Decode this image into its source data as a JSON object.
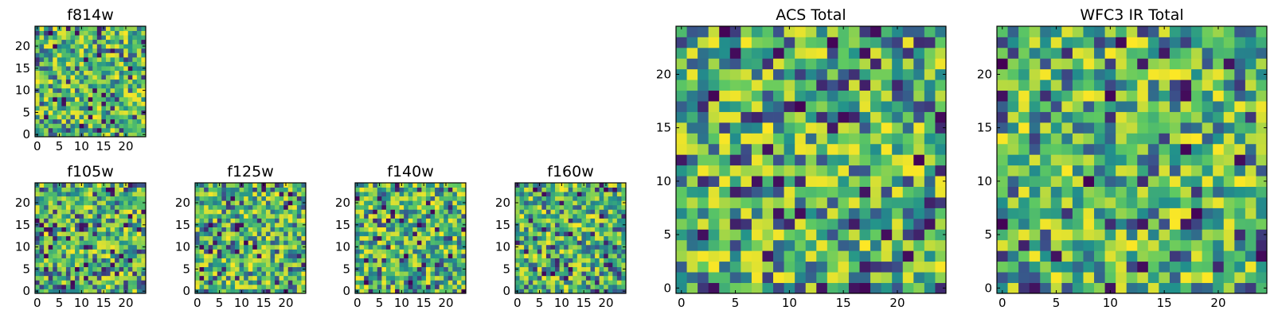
{
  "figure": {
    "colormap": "viridis",
    "colormap_stops": [
      "#440154",
      "#3b528b",
      "#21918c",
      "#5ec962",
      "#fde725"
    ],
    "frame_color": "#000000"
  },
  "chart_data": [
    {
      "type": "heatmap",
      "title": "f814w",
      "grid_size": 25,
      "seed": 11,
      "xlim": [
        -0.5,
        24.5
      ],
      "ylim": [
        -0.5,
        24.5
      ],
      "xticks": [
        "0",
        "5",
        "10",
        "15",
        "20"
      ],
      "yticks": [
        "0",
        "5",
        "10",
        "15",
        "20"
      ],
      "value_range": [
        0,
        1
      ]
    },
    {
      "type": "heatmap",
      "title": "f105w",
      "grid_size": 25,
      "seed": 23,
      "xlim": [
        -0.5,
        24.5
      ],
      "ylim": [
        -0.5,
        24.5
      ],
      "xticks": [
        "0",
        "5",
        "10",
        "15",
        "20"
      ],
      "yticks": [
        "0",
        "5",
        "10",
        "15",
        "20"
      ],
      "value_range": [
        0,
        1
      ]
    },
    {
      "type": "heatmap",
      "title": "f125w",
      "grid_size": 25,
      "seed": 37,
      "xlim": [
        -0.5,
        24.5
      ],
      "ylim": [
        -0.5,
        24.5
      ],
      "xticks": [
        "0",
        "5",
        "10",
        "15",
        "20"
      ],
      "yticks": [
        "0",
        "5",
        "10",
        "15",
        "20"
      ],
      "value_range": [
        0,
        1
      ]
    },
    {
      "type": "heatmap",
      "title": "f140w",
      "grid_size": 25,
      "seed": 41,
      "xlim": [
        -0.5,
        24.5
      ],
      "ylim": [
        -0.5,
        24.5
      ],
      "xticks": [
        "0",
        "5",
        "10",
        "15",
        "20"
      ],
      "yticks": [
        "0",
        "5",
        "10",
        "15",
        "20"
      ],
      "value_range": [
        0,
        1
      ]
    },
    {
      "type": "heatmap",
      "title": "f160w",
      "grid_size": 25,
      "seed": 53,
      "xlim": [
        -0.5,
        24.5
      ],
      "ylim": [
        -0.5,
        24.5
      ],
      "xticks": [
        "0",
        "5",
        "10",
        "15",
        "20"
      ],
      "yticks": [
        "0",
        "5",
        "10",
        "15",
        "20"
      ],
      "value_range": [
        0,
        1
      ]
    },
    {
      "type": "heatmap",
      "title": "ACS Total",
      "grid_size": 25,
      "seed": 67,
      "xlim": [
        -0.5,
        24.5
      ],
      "ylim": [
        -0.5,
        24.5
      ],
      "xticks": [
        "0",
        "5",
        "10",
        "15",
        "20"
      ],
      "yticks": [
        "0",
        "5",
        "10",
        "15",
        "20"
      ],
      "value_range": [
        0,
        1
      ]
    },
    {
      "type": "heatmap",
      "title": "WFC3 IR Total",
      "grid_size": 25,
      "seed": 79,
      "xlim": [
        -0.5,
        24.5
      ],
      "ylim": [
        -0.5,
        24.5
      ],
      "xticks": [
        "0",
        "5",
        "10",
        "15",
        "20"
      ],
      "yticks": [
        "0",
        "5",
        "10",
        "15",
        "20"
      ],
      "value_range": [
        0,
        1
      ]
    }
  ]
}
